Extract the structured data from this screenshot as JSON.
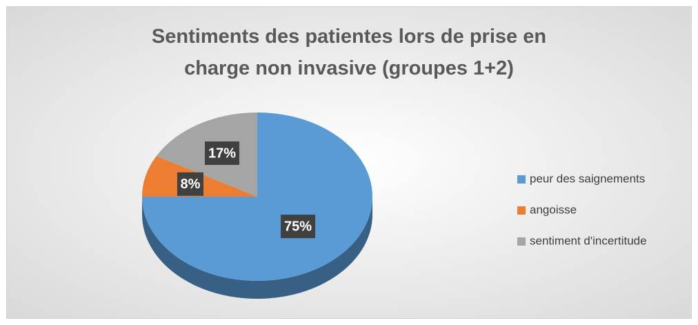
{
  "chart_data": {
    "type": "pie",
    "title": "Sentiments des patientes lors de prise en charge non invasive (groupes 1+2)",
    "categories": [
      "peur des saignements",
      "angoisse",
      "sentiment d'incertitude"
    ],
    "values": [
      75,
      8,
      17
    ],
    "value_labels": [
      "75%",
      "8%",
      "17%"
    ],
    "colors": [
      "#5b9bd5",
      "#ed7d31",
      "#a5a5a5"
    ],
    "legend": "right"
  }
}
